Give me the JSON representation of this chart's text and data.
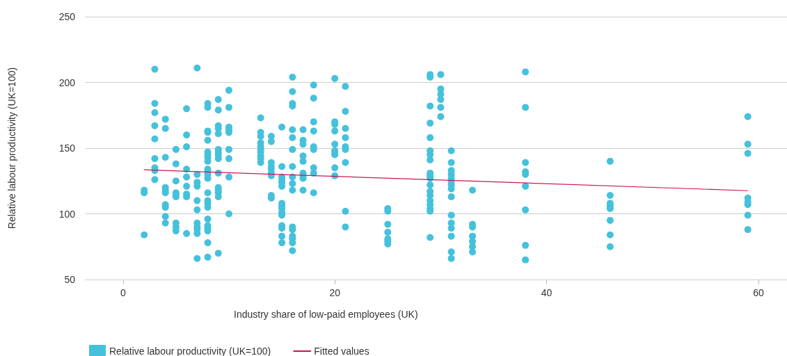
{
  "chart_data": {
    "type": "scatter",
    "xlabel": "Industry share of low-paid employees (UK)",
    "ylabel": "Relative labour productivity (UK=100)",
    "xlim": [
      -3.6,
      62.7
    ],
    "ylim": [
      50,
      250
    ],
    "xticks": [
      0,
      20,
      40,
      60
    ],
    "yticks": [
      50,
      100,
      150,
      200,
      250
    ],
    "grid": "y",
    "legend": "bottom left",
    "marker": "circle",
    "series": [
      {
        "name": "Relative labour productivity (UK=100)",
        "color": "#45c1dc",
        "x": [
          2,
          2,
          2,
          3,
          3,
          3,
          3,
          3,
          3,
          3,
          3,
          3,
          4,
          4,
          4,
          4,
          4,
          4,
          4,
          4,
          4,
          4,
          5,
          5,
          5,
          5,
          5,
          5,
          5,
          5,
          5,
          6,
          6,
          6,
          6,
          6,
          6,
          6,
          6,
          6,
          7,
          7,
          7,
          7,
          7,
          7,
          7,
          7,
          7,
          7,
          7,
          8,
          8,
          8,
          8,
          8,
          8,
          8,
          8,
          8,
          8,
          8,
          8,
          8,
          8,
          8,
          8,
          8,
          8,
          8,
          8,
          8,
          8,
          8,
          9,
          9,
          9,
          9,
          9,
          9,
          9,
          9,
          9,
          9,
          9,
          9,
          9,
          9,
          9,
          10,
          10,
          10,
          10,
          10,
          10,
          10,
          10,
          10,
          13,
          13,
          13,
          13,
          13,
          13,
          13,
          13,
          13,
          13,
          14,
          14,
          14,
          14,
          14,
          14,
          14,
          14,
          14,
          15,
          15,
          15,
          15,
          15,
          15,
          15,
          15,
          15,
          15,
          15,
          15,
          15,
          15,
          15,
          16,
          16,
          16,
          16,
          16,
          16,
          16,
          16,
          16,
          16,
          16,
          16,
          16,
          16,
          16,
          16,
          16,
          17,
          17,
          17,
          17,
          17,
          17,
          17,
          17,
          17,
          18,
          18,
          18,
          18,
          18,
          18,
          18,
          18,
          18,
          20,
          20,
          20,
          20,
          20,
          20,
          20,
          20,
          20,
          20,
          21,
          21,
          21,
          21,
          21,
          21,
          21,
          21,
          21,
          25,
          25,
          25,
          25,
          25,
          25,
          25,
          29,
          29,
          29,
          29,
          29,
          29,
          29,
          29,
          29,
          29,
          29,
          29,
          29,
          29,
          29,
          29,
          29,
          29,
          29,
          30,
          30,
          30,
          30,
          30,
          30,
          31,
          31,
          31,
          31,
          31,
          31,
          31,
          31,
          31,
          31,
          31,
          31,
          31,
          31,
          31,
          33,
          33,
          33,
          33,
          33,
          33,
          33,
          38,
          38,
          38,
          38,
          38,
          38,
          38,
          38,
          38,
          46,
          46,
          46,
          46,
          46,
          46,
          46,
          46,
          59,
          59,
          59,
          59,
          59,
          59,
          59,
          59
        ],
        "values": [
          118,
          116,
          84,
          210,
          184,
          177,
          167,
          157,
          142,
          135,
          133,
          126,
          172,
          165,
          143,
          120,
          118,
          116,
          107,
          105,
          98,
          93,
          149,
          138,
          125,
          116,
          115,
          113,
          93,
          90,
          87,
          180,
          160,
          151,
          134,
          128,
          121,
          115,
          113,
          85,
          211,
          130,
          124,
          121,
          110,
          103,
          93,
          90,
          88,
          85,
          66,
          184,
          181,
          163,
          162,
          156,
          147,
          145,
          143,
          140,
          134,
          132,
          130,
          127,
          116,
          110,
          108,
          105,
          96,
          91,
          89,
          87,
          78,
          67,
          187,
          179,
          167,
          165,
          161,
          149,
          147,
          145,
          142,
          131,
          120,
          118,
          116,
          113,
          70,
          194,
          181,
          166,
          164,
          162,
          149,
          142,
          128,
          100,
          173,
          162,
          159,
          154,
          151,
          149,
          147,
          144,
          142,
          139,
          159,
          155,
          139,
          136,
          134,
          131,
          129,
          114,
          112,
          166,
          136,
          128,
          126,
          124,
          121,
          108,
          106,
          104,
          101,
          99,
          91,
          89,
          83,
          78,
          204,
          193,
          184,
          182,
          164,
          158,
          149,
          136,
          128,
          123,
          118,
          90,
          88,
          83,
          81,
          78,
          72,
          164,
          156,
          153,
          144,
          140,
          131,
          129,
          127,
          118,
          198,
          188,
          170,
          163,
          151,
          149,
          135,
          131,
          116,
          203,
          170,
          168,
          163,
          153,
          148,
          147,
          145,
          135,
          129,
          197,
          178,
          165,
          158,
          151,
          149,
          139,
          102,
          90,
          104,
          102,
          92,
          86,
          81,
          79,
          77,
          206,
          204,
          182,
          169,
          158,
          148,
          145,
          141,
          131,
          129,
          127,
          122,
          117,
          114,
          110,
          107,
          104,
          102,
          82,
          206,
          195,
          191,
          187,
          181,
          174,
          148,
          139,
          133,
          130,
          127,
          124,
          122,
          119,
          113,
          99,
          93,
          89,
          83,
          71,
          66,
          118,
          92,
          90,
          83,
          79,
          75,
          71,
          208,
          181,
          139,
          132,
          130,
          121,
          103,
          76,
          65,
          140,
          114,
          108,
          106,
          104,
          95,
          84,
          75,
          174,
          153,
          146,
          112,
          109,
          107,
          99,
          88
        ]
      },
      {
        "name": "Fitted values",
        "type": "line",
        "color": "#cc1452",
        "marker": "none",
        "x": [
          2,
          59
        ],
        "values": [
          133.5,
          117.6
        ]
      }
    ]
  }
}
